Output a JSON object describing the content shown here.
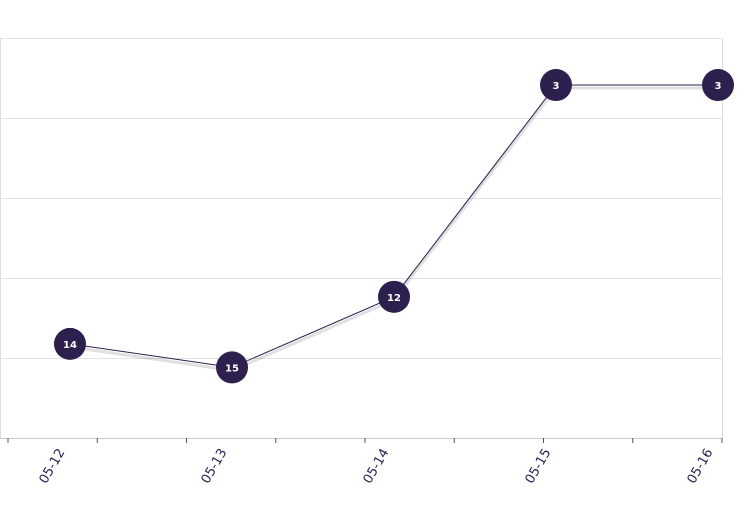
{
  "chart_data": {
    "type": "line",
    "categories": [
      "05-12",
      "05-13",
      "05-14",
      "05-15",
      "05-16"
    ],
    "values": [
      14,
      15,
      12,
      3,
      3
    ],
    "color": "#2d1f4e",
    "ylim": [
      1,
      18
    ],
    "y_inverted": true,
    "grid": true
  }
}
